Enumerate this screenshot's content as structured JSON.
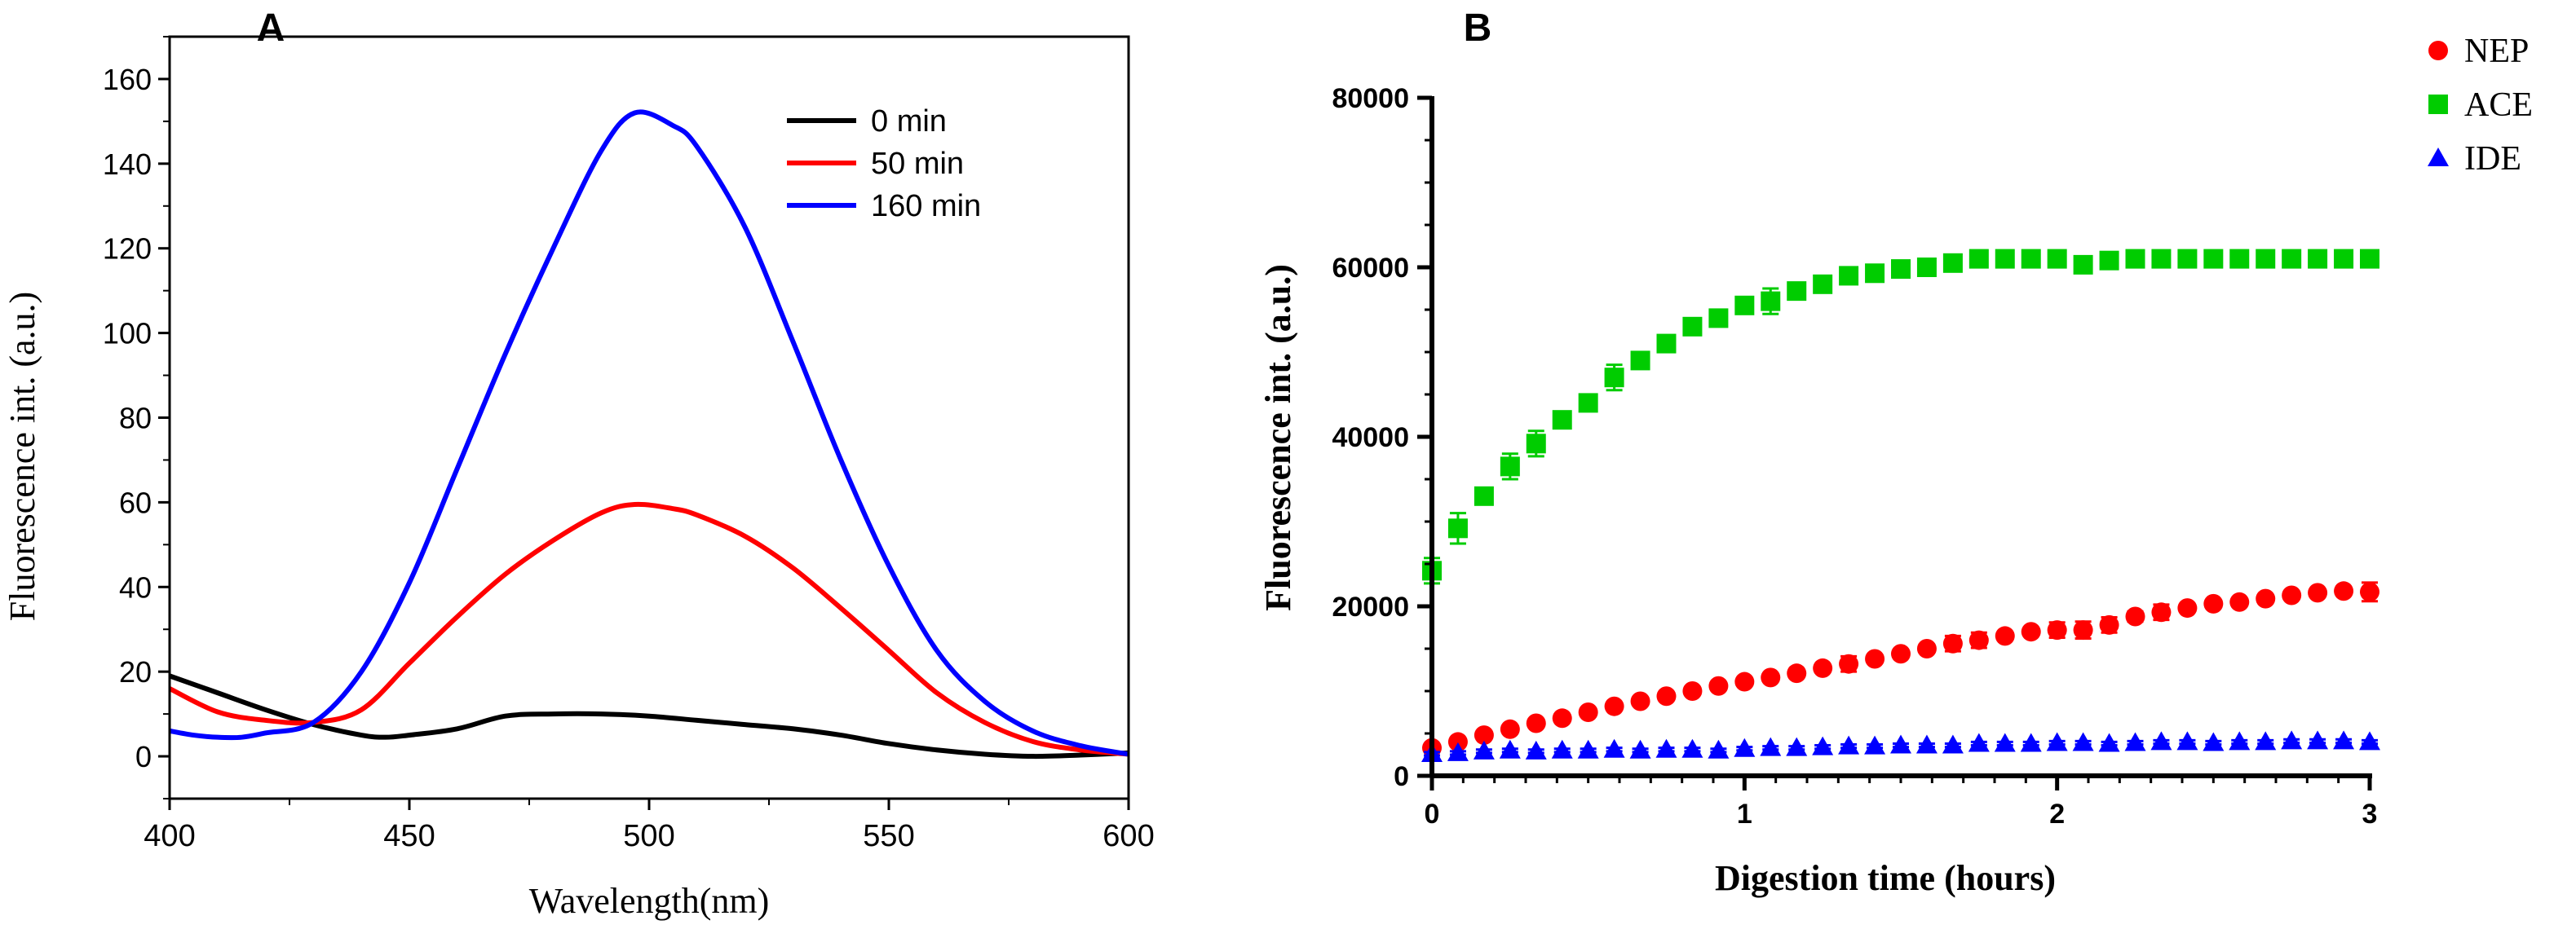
{
  "chart_data": [
    {
      "panel_label": "A",
      "type": "line",
      "xlabel": "Wavelength(nm)",
      "ylabel": "Fluorescence int. (a.u.)",
      "xlim": [
        400,
        600
      ],
      "ylim": [
        -10,
        170
      ],
      "x_ticks": [
        400,
        450,
        500,
        550,
        600
      ],
      "y_ticks": [
        0,
        20,
        40,
        60,
        80,
        100,
        120,
        140,
        160
      ],
      "legend_position": "top-right",
      "series": [
        {
          "name": "0 min",
          "color": "#000000",
          "x": [
            400,
            410,
            420,
            430,
            440,
            445,
            450,
            460,
            470,
            480,
            490,
            500,
            510,
            520,
            530,
            540,
            550,
            560,
            570,
            580,
            590,
            600
          ],
          "values": [
            19,
            15,
            11,
            7.5,
            5,
            4.5,
            5,
            6.5,
            9.5,
            10,
            10,
            9.5,
            8.5,
            7.5,
            6.5,
            5,
            3,
            1.5,
            0.5,
            0,
            0.3,
            0.8
          ]
        },
        {
          "name": "50 min",
          "color": "#ff0000",
          "x": [
            400,
            410,
            420,
            430,
            440,
            450,
            460,
            470,
            480,
            490,
            497,
            505,
            510,
            520,
            530,
            540,
            550,
            560,
            570,
            580,
            590,
            600
          ],
          "values": [
            16,
            10.5,
            8.5,
            8,
            11,
            22,
            33,
            43,
            51,
            57.5,
            59.5,
            58.5,
            57,
            52,
            44.5,
            35,
            25,
            15,
            8,
            3.5,
            1.5,
            0.5
          ]
        },
        {
          "name": "160 min",
          "color": "#0000ff",
          "x": [
            400,
            405,
            410,
            415,
            420,
            430,
            440,
            450,
            460,
            470,
            480,
            490,
            497,
            505,
            510,
            520,
            530,
            540,
            550,
            560,
            570,
            580,
            590,
            600
          ],
          "values": [
            6,
            5,
            4.5,
            4.5,
            5.5,
            8,
            20,
            41,
            68,
            95,
            120,
            143,
            152,
            149,
            144,
            125,
            98,
            70,
            45,
            25,
            13,
            6,
            2.5,
            0.5
          ]
        }
      ]
    },
    {
      "panel_label": "B",
      "type": "scatter",
      "xlabel": "Digestion time (hours)",
      "ylabel": "Fluorescence int. (a.u.)",
      "xlim": [
        0,
        3
      ],
      "ylim": [
        0,
        80000
      ],
      "x_ticks": [
        0,
        1,
        2,
        3
      ],
      "y_ticks": [
        0,
        20000,
        40000,
        60000,
        80000
      ],
      "legend_position": "top-right outside",
      "x": [
        0,
        0.0833,
        0.1667,
        0.25,
        0.3333,
        0.4167,
        0.5,
        0.5833,
        0.6667,
        0.75,
        0.8333,
        0.9167,
        1.0,
        1.0833,
        1.1667,
        1.25,
        1.3333,
        1.4167,
        1.5,
        1.5833,
        1.6667,
        1.75,
        1.8333,
        1.9167,
        2.0,
        2.0833,
        2.1667,
        2.25,
        2.3333,
        2.4167,
        2.5,
        2.5833,
        2.6667,
        2.75,
        2.8333,
        2.9167,
        3.0
      ],
      "series": [
        {
          "name": "NEP",
          "marker": "circle",
          "color": "#ff0000",
          "values": [
            3300,
            4000,
            4800,
            5500,
            6200,
            6800,
            7500,
            8200,
            8800,
            9400,
            10000,
            10600,
            11100,
            11600,
            12100,
            12700,
            13200,
            13800,
            14400,
            15000,
            15600,
            16000,
            16500,
            17000,
            17200,
            17200,
            17800,
            18800,
            19300,
            19800,
            20300,
            20500,
            20900,
            21300,
            21600,
            21800,
            21700
          ],
          "errors": [
            300,
            200,
            200,
            200,
            200,
            200,
            200,
            300,
            200,
            200,
            300,
            300,
            300,
            300,
            300,
            300,
            900,
            300,
            300,
            300,
            900,
            900,
            300,
            300,
            900,
            1000,
            900,
            600,
            900,
            300,
            300,
            300,
            300,
            300,
            300,
            300,
            1100
          ]
        },
        {
          "name": "ACE",
          "marker": "square",
          "color": "#00cc00",
          "values": [
            24200,
            29200,
            33000,
            36500,
            39200,
            42000,
            44000,
            47000,
            49000,
            51000,
            53000,
            54000,
            55500,
            56000,
            57200,
            58000,
            59000,
            59300,
            59800,
            60000,
            60500,
            61000,
            61000,
            61000,
            61000,
            60300,
            60800,
            61000,
            61000,
            61000,
            61000,
            61000,
            61000,
            61000,
            61000,
            61000,
            61000
          ],
          "errors": [
            1500,
            1800,
            800,
            1500,
            1500,
            800,
            800,
            1500,
            800,
            800,
            800,
            800,
            800,
            1500,
            800,
            800,
            800,
            800,
            800,
            800,
            800,
            800,
            800,
            800,
            800,
            800,
            800,
            800,
            800,
            800,
            800,
            800,
            800,
            800,
            800,
            800,
            800
          ]
        },
        {
          "name": "IDE",
          "marker": "triangle",
          "color": "#0000ff",
          "values": [
            2600,
            2700,
            2900,
            3000,
            2900,
            3000,
            3000,
            3100,
            3000,
            3100,
            3100,
            3000,
            3200,
            3300,
            3300,
            3400,
            3500,
            3500,
            3600,
            3600,
            3600,
            3800,
            3800,
            3800,
            3900,
            3900,
            3800,
            3900,
            4000,
            4000,
            3900,
            4000,
            4000,
            4100,
            4100,
            4100,
            4000
          ],
          "errors": [
            200,
            200,
            200,
            200,
            200,
            200,
            200,
            200,
            200,
            200,
            200,
            200,
            200,
            200,
            200,
            200,
            200,
            200,
            200,
            200,
            200,
            200,
            200,
            200,
            200,
            200,
            200,
            200,
            200,
            200,
            200,
            200,
            200,
            200,
            200,
            200,
            200
          ]
        }
      ]
    }
  ]
}
